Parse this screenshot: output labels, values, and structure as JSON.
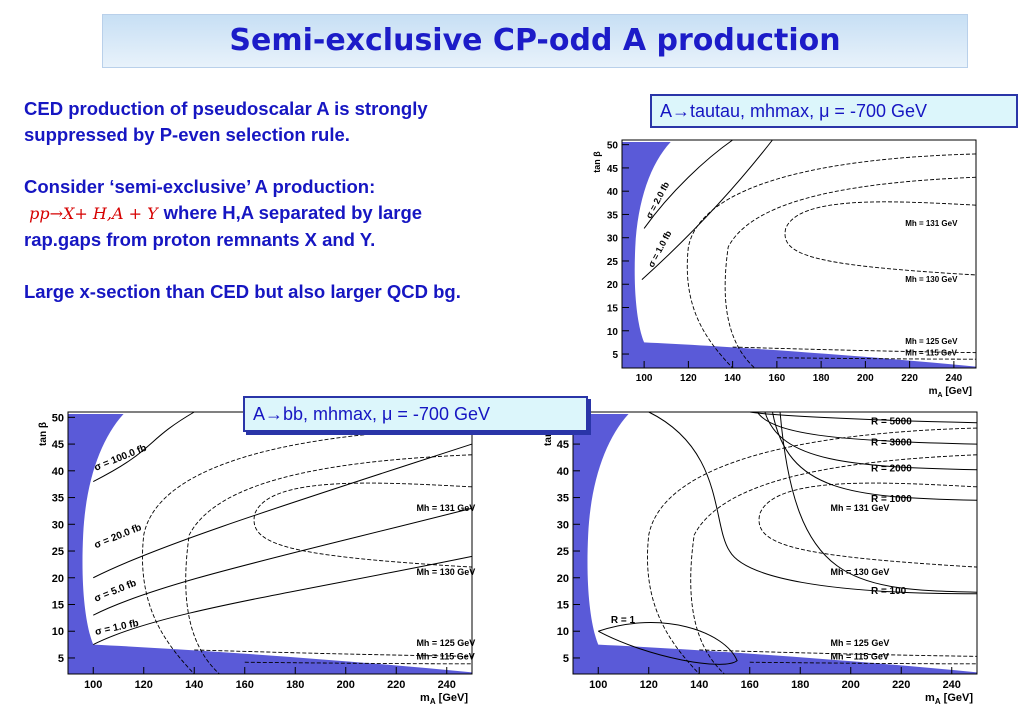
{
  "title": "Semi-exclusive CP-odd A production",
  "text": {
    "p1_l1": "CED production of pseudoscalar A is strongly",
    "p1_l2": "suppressed by P-even selection rule.",
    "p2_l1": "Consider ‘semi-exclusive’ A production:",
    "formula": "pp→X+ H,A + Y",
    "p2_l2_rest": "where H,A separated by large",
    "p2_l3": "rap.gaps from proton remnants X and Y.",
    "p3": "Large x-section than CED but also larger QCD bg."
  },
  "callouts": {
    "tautau": "A→tautau, mhmax, μ = -700 GeV",
    "bb": "A→bb, mhmax, μ = -700 GeV"
  },
  "plots": {
    "y_label": "tan β",
    "x_label": "m",
    "x_label_sub": "A",
    "x_label_unit": " [GeV]",
    "x_ticks": [
      "100",
      "120",
      "140",
      "160",
      "180",
      "200",
      "220",
      "240"
    ],
    "y_ticks": [
      "5",
      "10",
      "15",
      "20",
      "25",
      "30",
      "35",
      "40",
      "45",
      "50"
    ],
    "mh_labels": [
      "M_h = 131 GeV",
      "M_h = 130 GeV",
      "M_h = 125 GeV",
      "M_h = 115 GeV"
    ],
    "tautau_sigma": [
      "σ = 2.0 fb",
      "σ = 1.0 fb"
    ],
    "bb_sigma": [
      "σ = 100.0 fb",
      "σ = 20.0 fb",
      "σ = 5.0 fb",
      "σ = 1.0 fb"
    ],
    "r_labels": [
      "R = 5000",
      "R = 3000",
      "R = 2000",
      "R = 1000",
      "R = 100",
      "R = 1"
    ]
  },
  "colors": {
    "title": "#1c1cc8",
    "text": "#1616c2",
    "formula": "#d60000",
    "excluded": "#5a5ad8"
  }
}
